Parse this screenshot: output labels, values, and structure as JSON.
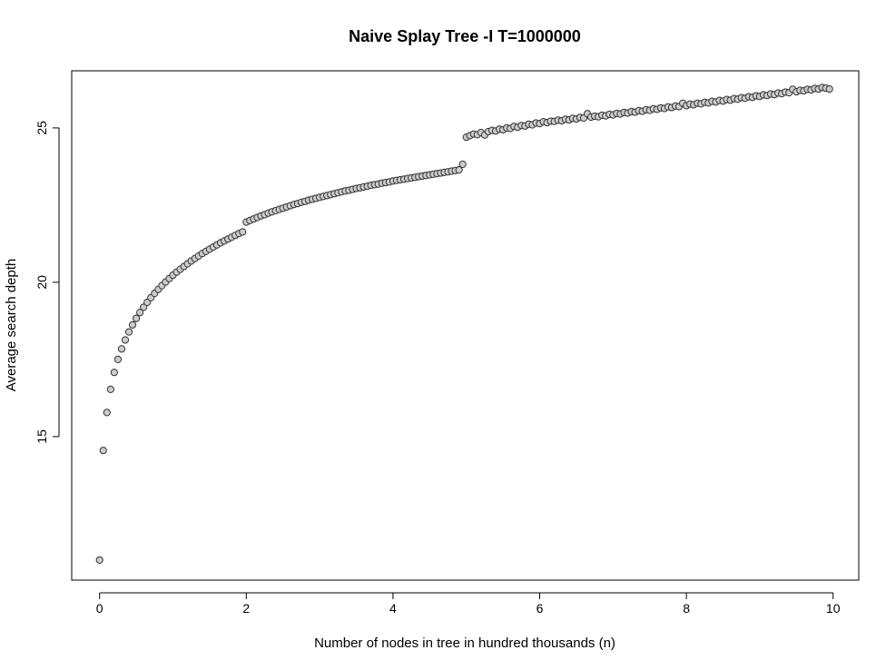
{
  "chart_data": {
    "type": "scatter",
    "title": "Naive Splay Tree -I T=1000000",
    "xlabel": "Number of nodes in tree in hundred thousands (n)",
    "ylabel": "Average search depth",
    "xlim": [
      -0.38,
      10.35
    ],
    "ylim": [
      10.35,
      26.85
    ],
    "xticks": [
      0,
      2,
      4,
      6,
      8,
      10
    ],
    "yticks": [
      15,
      20,
      25
    ],
    "grid": false,
    "legend": "none",
    "point_fill": "#cccccc",
    "point_stroke": "#333333",
    "segments": [
      {
        "x_start": 0.0,
        "x_step": 0.05,
        "values": [
          11.0,
          14.55,
          15.78,
          16.53,
          17.08,
          17.5,
          17.84,
          18.13,
          18.39,
          18.62,
          18.83,
          19.02,
          19.19,
          19.35,
          19.5,
          19.64,
          19.77,
          19.89,
          20.01,
          20.12,
          20.23,
          20.33,
          20.42,
          20.51,
          20.6,
          20.69,
          20.77,
          20.85,
          20.93,
          21.0,
          21.07,
          21.14,
          21.21,
          21.28,
          21.34,
          21.4,
          21.46,
          21.52,
          21.58,
          21.63
        ]
      },
      {
        "x_start": 2.0,
        "x_step": 0.05,
        "values": [
          21.95,
          22.0,
          22.05,
          22.1,
          22.15,
          22.19,
          22.24,
          22.28,
          22.32,
          22.36,
          22.4,
          22.44,
          22.48,
          22.52,
          22.55,
          22.59,
          22.62,
          22.66,
          22.69,
          22.72,
          22.75,
          22.78,
          22.81,
          22.84,
          22.87,
          22.9,
          22.93,
          22.96,
          22.98,
          23.01,
          23.04,
          23.06,
          23.09,
          23.11,
          23.14,
          23.16,
          23.18,
          23.21,
          23.23,
          23.25,
          23.28,
          23.3,
          23.32,
          23.34,
          23.36,
          23.38,
          23.4,
          23.42,
          23.44,
          23.46,
          23.48,
          23.5,
          23.52,
          23.54,
          23.56,
          23.58,
          23.6,
          23.62,
          23.64,
          23.82
        ]
      },
      {
        "x_start": 5.0,
        "x_step": 0.05,
        "values": [
          24.7,
          24.75,
          24.8,
          24.78,
          24.85,
          24.77,
          24.88,
          24.92,
          24.9,
          24.96,
          24.94,
          25.0,
          24.98,
          25.05,
          25.02,
          25.08,
          25.06,
          25.12,
          25.1,
          25.16,
          25.14,
          25.2,
          25.17,
          25.22,
          25.21,
          25.25,
          25.23,
          25.28,
          25.26,
          25.31,
          25.29,
          25.34,
          25.32,
          25.46,
          25.35,
          25.38,
          25.36,
          25.41,
          25.39,
          25.44,
          25.42,
          25.47,
          25.45,
          25.5,
          25.48,
          25.53,
          25.51,
          25.56,
          25.54,
          25.59,
          25.57,
          25.62,
          25.6,
          25.65,
          25.63,
          25.68,
          25.66,
          25.71,
          25.69,
          25.8,
          25.72,
          25.77,
          25.75,
          25.8,
          25.78,
          25.83,
          25.81,
          25.86,
          25.84,
          25.89,
          25.87,
          25.92,
          25.9,
          25.95,
          25.93,
          25.98,
          25.96,
          26.01,
          25.99,
          26.04,
          26.02,
          26.07,
          26.05,
          26.1,
          26.08,
          26.13,
          26.11,
          26.16,
          26.14,
          26.25,
          26.17,
          26.22,
          26.2,
          26.25,
          26.23,
          26.28,
          26.26,
          26.31,
          26.29,
          26.26
        ]
      }
    ]
  }
}
